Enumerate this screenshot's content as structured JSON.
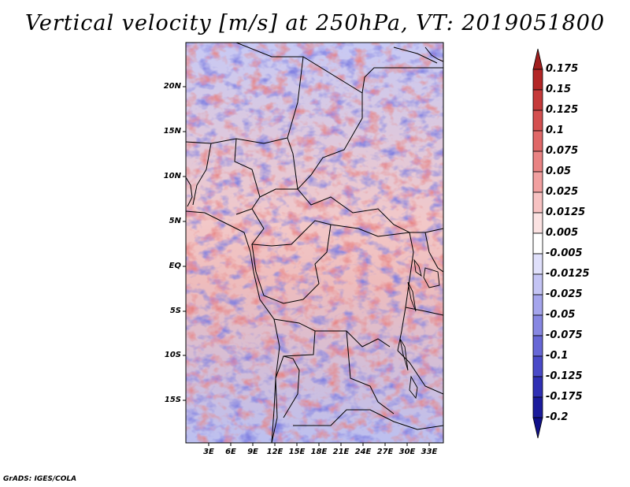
{
  "title": "Vertical velocity [m/s] at 250hPa, VT: 2019051800",
  "footer": "GrADS: IGES/COLA",
  "map": {
    "variable": "Vertical velocity",
    "units": "m/s",
    "level": "250hPa",
    "valid_time": "2019051800",
    "lat_labels": [
      "20N",
      "15N",
      "10N",
      "5N",
      "EQ",
      "5S",
      "10S",
      "15S"
    ],
    "lon_labels": [
      "3E",
      "6E",
      "9E",
      "12E",
      "15E",
      "18E",
      "21E",
      "24E",
      "27E",
      "30E",
      "33E"
    ]
  },
  "colorbar": {
    "labels": [
      "0.175",
      "0.15",
      "0.125",
      "0.1",
      "0.075",
      "0.05",
      "0.025",
      "0.0125",
      "0.005",
      "-0.005",
      "-0.0125",
      "-0.025",
      "-0.05",
      "-0.075",
      "-0.1",
      "-0.125",
      "-0.175",
      "-0.2"
    ],
    "colors": [
      "#a01e1e",
      "#b32626",
      "#c53a3a",
      "#d45050",
      "#e06868",
      "#e98383",
      "#f1a0a0",
      "#f7c2c2",
      "#fbe2e2",
      "#ffffff",
      "#e0e0fb",
      "#c4c4f4",
      "#a5a5ec",
      "#8787e2",
      "#6767d6",
      "#4a4ac8",
      "#3030b4",
      "#1c1c9c",
      "#10108a"
    ]
  }
}
